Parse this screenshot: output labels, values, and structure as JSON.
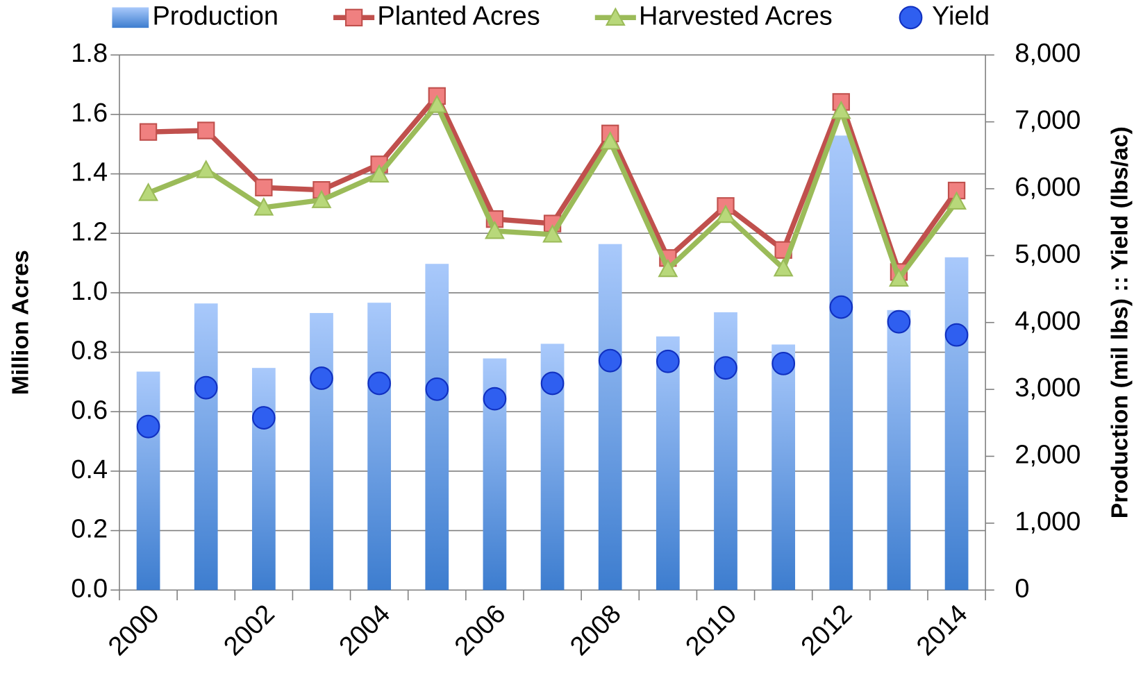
{
  "chart_data": {
    "type": "combo",
    "categories": [
      "2000",
      null,
      "2002",
      null,
      "2004",
      null,
      "2006",
      null,
      "2008",
      null,
      "2010",
      null,
      "2012",
      null,
      "2014"
    ],
    "series": [
      {
        "name": "Production",
        "type": "bar",
        "axis": "y2",
        "color": "#4a86d8",
        "values": [
          3266,
          4285,
          3321,
          4142,
          4296,
          4877,
          3463,
          3682,
          5173,
          3792,
          4153,
          3671,
          6795,
          4186,
          4975
        ]
      },
      {
        "name": "Planted Acres",
        "type": "line",
        "marker": "square",
        "color": "#c0504d",
        "values": [
          1.541,
          1.546,
          1.354,
          1.346,
          1.432,
          1.662,
          1.248,
          1.233,
          1.536,
          1.117,
          1.292,
          1.144,
          1.642,
          1.07,
          1.344
        ]
      },
      {
        "name": "Harvested Acres",
        "type": "line",
        "marker": "triangle",
        "color": "#9bbb59",
        "values": [
          1.336,
          1.413,
          1.287,
          1.312,
          1.398,
          1.632,
          1.208,
          1.196,
          1.509,
          1.08,
          1.262,
          1.082,
          1.612,
          1.048,
          1.307
        ]
      },
      {
        "name": "Yield",
        "type": "scatter",
        "axis": "y2",
        "color": "#2f5ff0",
        "values": [
          2444,
          3025,
          2575,
          3167,
          3090,
          3003,
          2860,
          3090,
          3430,
          3419,
          3321,
          3386,
          4230,
          4011,
          3814
        ]
      }
    ],
    "y_label": "Million Acres",
    "y2_label": "Production (mil lbs) :: Yield (lbs/ac)",
    "ylim": [
      0,
      1.8
    ],
    "yticks": [
      {
        "value": 0,
        "label": "0.0"
      },
      0.2,
      0.4,
      0.6,
      0.8,
      {
        "value": 1,
        "label": "1.0"
      },
      1.2,
      1.4,
      1.6,
      1.8
    ],
    "y2lim": [
      0,
      8000
    ],
    "y2ticks": [
      0,
      {
        "value": 1000,
        "label": "1,000"
      },
      {
        "value": 2000,
        "label": "2,000"
      },
      {
        "value": 3000,
        "label": "3,000"
      },
      {
        "value": 4000,
        "label": "4,000"
      },
      {
        "value": 5000,
        "label": "5,000"
      },
      {
        "value": 6000,
        "label": "6,000"
      },
      {
        "value": 7000,
        "label": "7,000"
      },
      {
        "value": 8000,
        "label": "8,000"
      }
    ],
    "grid": true,
    "legend": "top"
  }
}
